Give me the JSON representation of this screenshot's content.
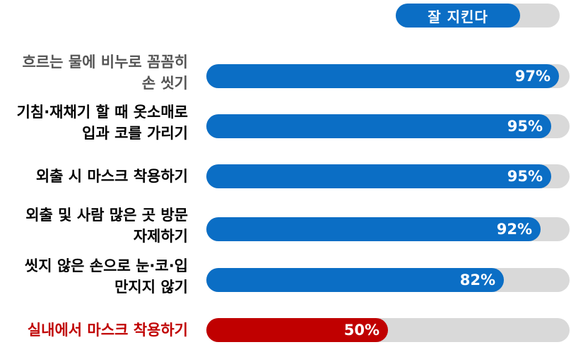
{
  "colors": {
    "primary": "#0b6ec5",
    "highlight": "#c00000",
    "track": "#d9d9d9",
    "label_default": "#000000",
    "label_first": "#555555"
  },
  "legend": {
    "label": "잘 지킨다"
  },
  "chart_data": {
    "type": "bar",
    "orientation": "horizontal",
    "xlim": [
      0,
      100
    ],
    "series": [
      {
        "name": "잘 지킨다",
        "values": [
          97,
          95,
          95,
          92,
          82,
          50
        ]
      }
    ],
    "categories": [
      [
        "흐르는 물에 비누로 꼼꼼히",
        "손 씻기"
      ],
      [
        "기침·재채기 할 때 옷소매로",
        "입과 코를 가리기"
      ],
      [
        "외출 시 마스크 착용하기"
      ],
      [
        "외출 및 사람 많은 곳 방문",
        "자제하기"
      ],
      [
        "씻지 않은 손으로 눈·코·입",
        "만지지 않기"
      ],
      [
        "실내에서 마스크 착용하기"
      ]
    ],
    "value_labels": [
      "97%",
      "95%",
      "95%",
      "92%",
      "82%",
      "50%"
    ],
    "highlighted_index": 5
  }
}
